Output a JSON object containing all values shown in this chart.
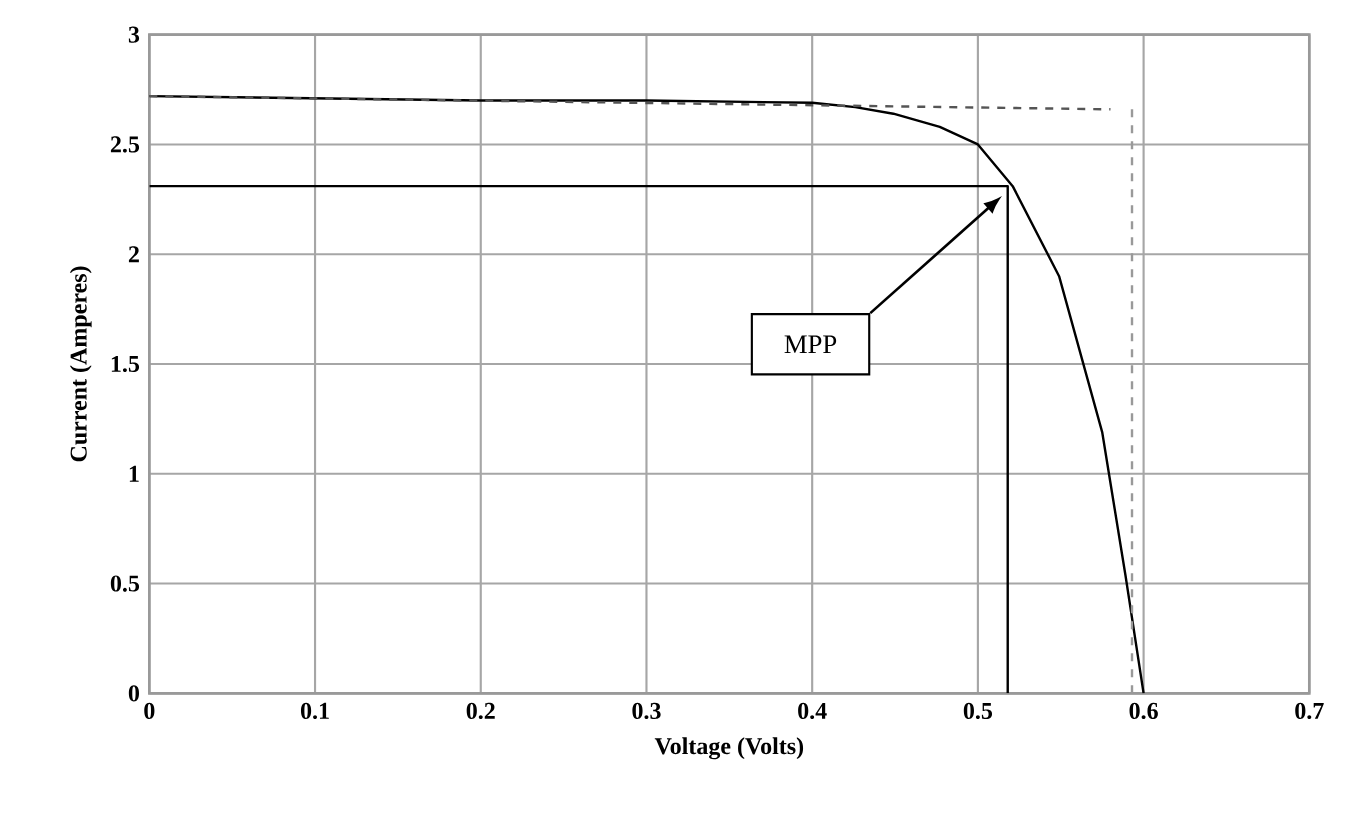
{
  "chart_data": {
    "type": "line",
    "xlabel": "Voltage (Volts)",
    "ylabel": "Current (Amperes)",
    "xlim": [
      0,
      0.7
    ],
    "ylim": [
      0,
      3
    ],
    "xticks": [
      0,
      0.1,
      0.2,
      0.3,
      0.4,
      0.5,
      0.6,
      0.7
    ],
    "yticks": [
      0,
      0.5,
      1,
      1.5,
      2,
      2.5,
      3
    ],
    "grid": true,
    "marker": "none",
    "series": [
      {
        "color": "#000000",
        "line_style": "solid",
        "x": [
          0,
          0.1,
          0.2,
          0.3,
          0.4,
          0.426,
          0.449,
          0.477,
          0.5,
          0.521,
          0.549,
          0.575,
          0.589,
          0.6
        ],
        "values": [
          2.72,
          2.71,
          2.7,
          2.7,
          2.69,
          2.67,
          2.64,
          2.58,
          2.5,
          2.31,
          1.9,
          1.19,
          0.54,
          0
        ]
      },
      {
        "color": "#555555",
        "line_style": "dashed",
        "x": [
          0,
          0.58
        ],
        "values": [
          2.72,
          2.66
        ]
      },
      {
        "color": "#999999",
        "line_style": "dashed",
        "x": [
          0.593,
          0.593
        ],
        "values": [
          2.66,
          0
        ]
      },
      {
        "color": "#000000",
        "line_style": "solid",
        "x": [
          0,
          0.518,
          0.518
        ],
        "values": [
          2.31,
          2.31,
          0
        ]
      }
    ],
    "annotations": [
      "MPP"
    ]
  }
}
